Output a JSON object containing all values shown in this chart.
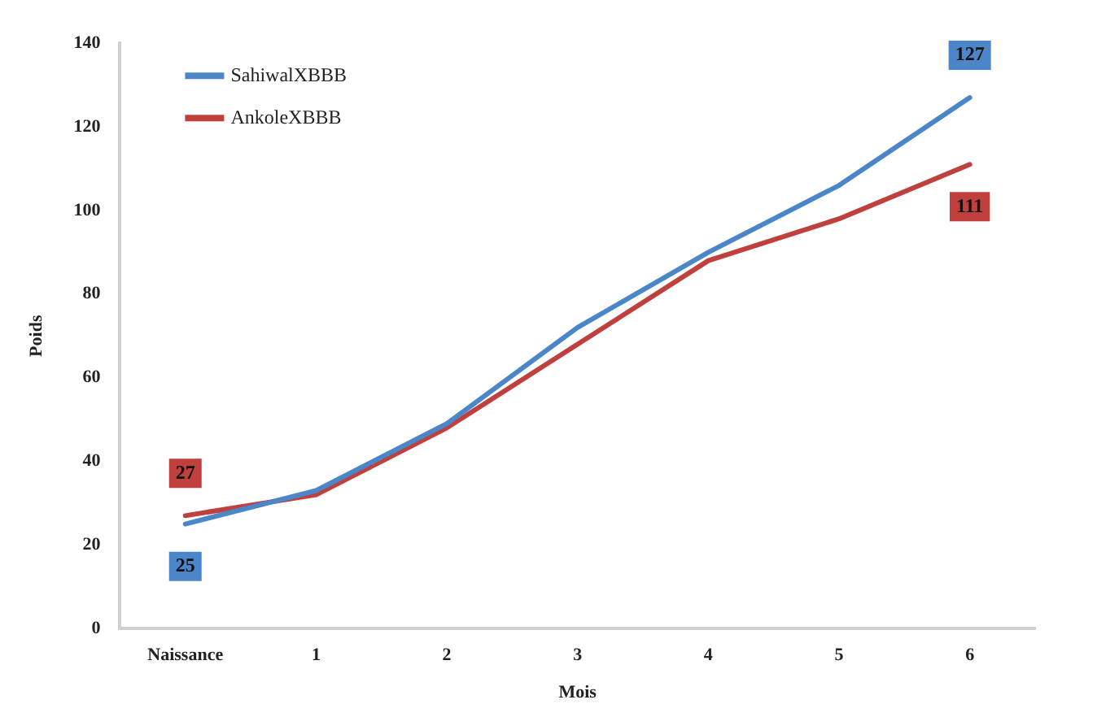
{
  "chart_data": {
    "type": "line",
    "xlabel": "Mois",
    "ylabel": "Poids",
    "categories": [
      "Naissance",
      "1",
      "2",
      "3",
      "4",
      "5",
      "6"
    ],
    "series": [
      {
        "name": "SahiwalXBBB",
        "color": "#4a86c8",
        "values": [
          25,
          33,
          49,
          72,
          90,
          106,
          127
        ],
        "value_labels": [
          "25",
          null,
          null,
          null,
          null,
          null,
          "127"
        ]
      },
      {
        "name": "AnkoleXBBB",
        "color": "#c0403e",
        "values": [
          27,
          32,
          48,
          68,
          88,
          98,
          111
        ],
        "value_labels": [
          "27",
          null,
          null,
          null,
          null,
          null,
          "111"
        ]
      }
    ],
    "ylim": [
      0,
      140
    ],
    "yticks": [
      0,
      20,
      40,
      60,
      80,
      100,
      120,
      140
    ],
    "grid": false,
    "legend": "top left",
    "marker": "none",
    "line_style": "solid"
  }
}
